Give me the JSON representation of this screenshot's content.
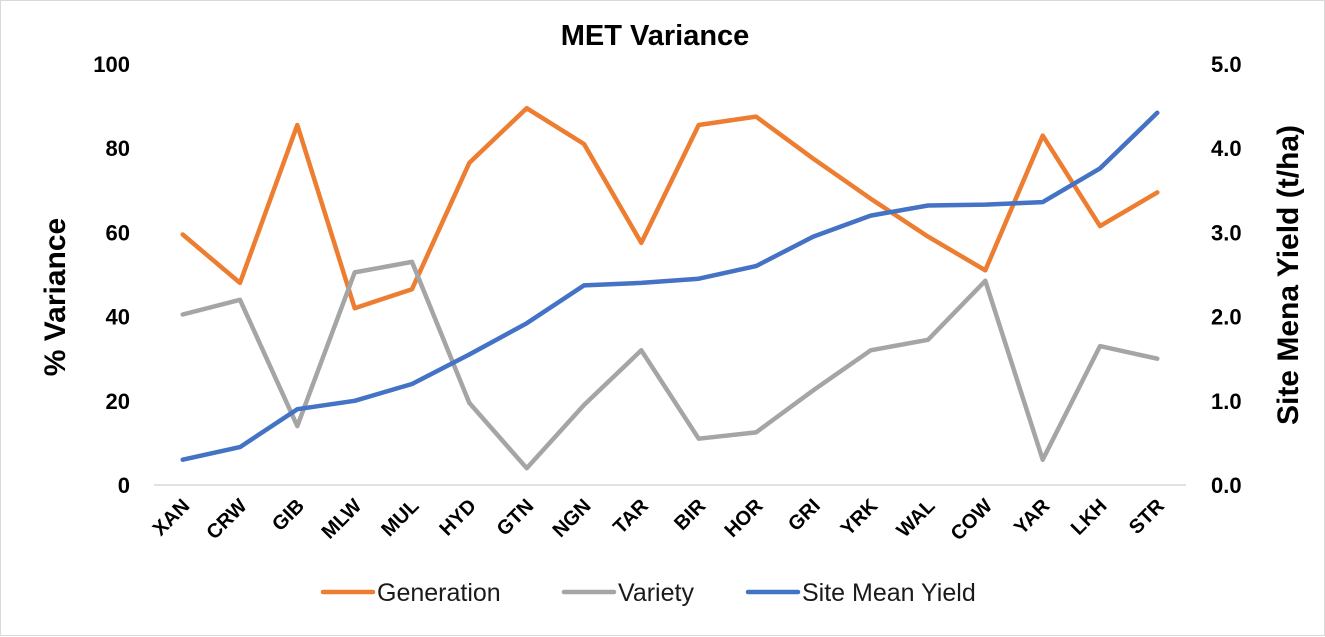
{
  "chart_data": {
    "type": "line",
    "title": "MET Variance",
    "ylabel": "% Variance",
    "y2label": "Site Mena Yield (t/ha)",
    "categories": [
      "XAN",
      "CRW",
      "GIB",
      "MLW",
      "MUL",
      "HYD",
      "GTN",
      "NGN",
      "TAR",
      "BIR",
      "HOR",
      "GRI",
      "YRK",
      "WAL",
      "COW",
      "YAR",
      "LKH",
      "STR"
    ],
    "ylim": [
      0,
      100
    ],
    "y2lim": [
      0,
      5
    ],
    "yticks": [
      "0",
      "20",
      "40",
      "60",
      "80",
      "100"
    ],
    "y2ticks": [
      "0.0",
      "1.0",
      "2.0",
      "3.0",
      "4.0",
      "5.0"
    ],
    "grid": false,
    "legend_position": "bottom",
    "series": [
      {
        "name": "Generation",
        "axis": "left",
        "color": "#ED7D31",
        "values": [
          59.5,
          48,
          85.5,
          42,
          46.5,
          76.5,
          89.5,
          81,
          57.5,
          85.5,
          87.5,
          77.5,
          68,
          59,
          51,
          83,
          61.5,
          69.5
        ]
      },
      {
        "name": "Variety",
        "axis": "left",
        "color": "#A5A5A5",
        "values": [
          40.5,
          44,
          14,
          50.5,
          53,
          19.5,
          4,
          19,
          32,
          11,
          12.5,
          22.5,
          32,
          34.5,
          48.5,
          6,
          33,
          30
        ]
      },
      {
        "name": "Site Mean Yield",
        "axis": "right",
        "color": "#4472C4",
        "values": [
          0.3,
          0.45,
          0.9,
          1.0,
          1.2,
          1.55,
          1.92,
          2.37,
          2.4,
          2.45,
          2.6,
          2.95,
          3.2,
          3.32,
          3.33,
          3.36,
          3.76,
          4.42
        ]
      }
    ]
  }
}
